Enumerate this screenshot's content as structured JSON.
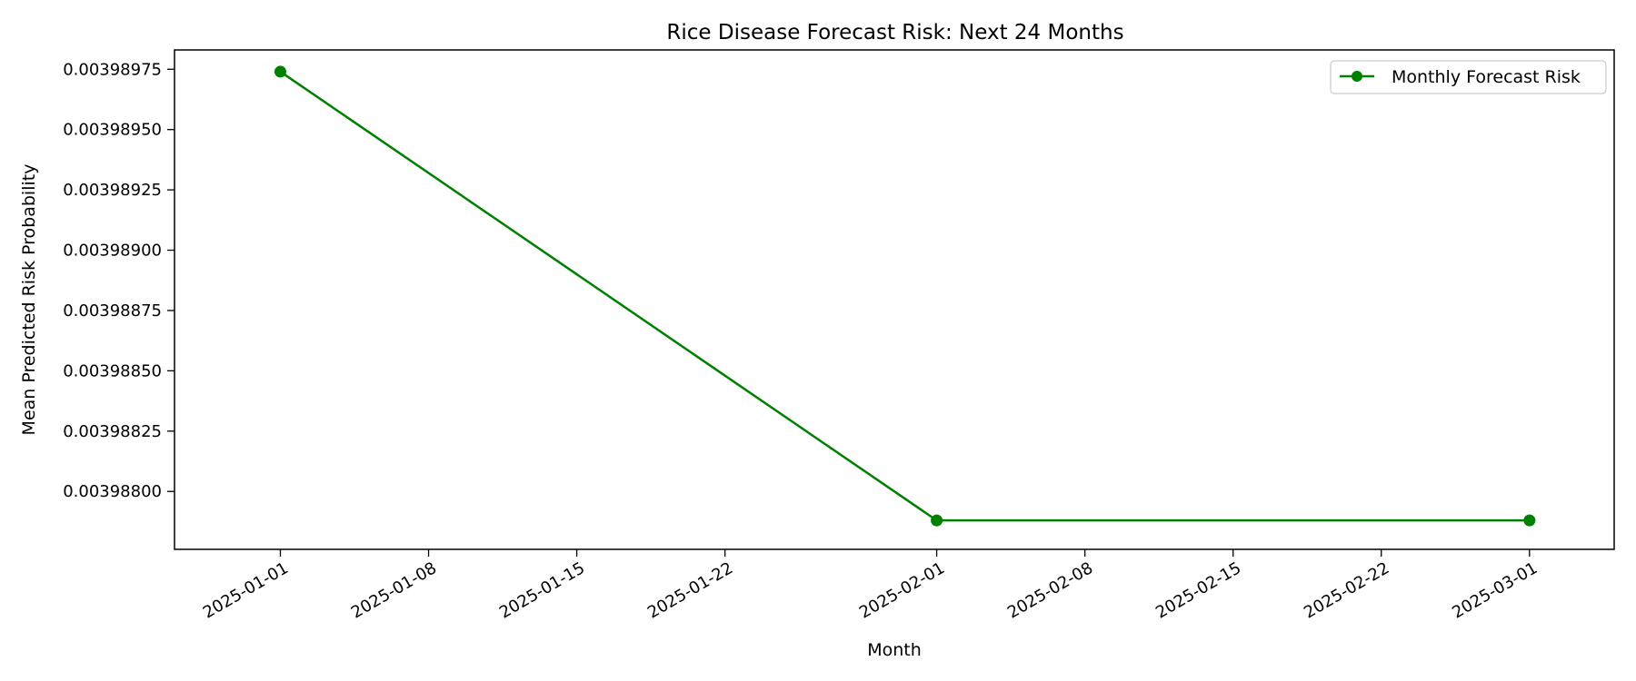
{
  "chart_data": {
    "type": "line",
    "title": "Rice Disease Forecast Risk: Next 24 Months",
    "xlabel": "Month",
    "ylabel": "Mean Predicted Risk Probability",
    "x_axis_type": "date",
    "xlim": [
      "2024-12-27",
      "2025-03-05"
    ],
    "ylim": [
      0.00398776,
      0.00398983
    ],
    "x_ticks": [
      "2025-01-01",
      "2025-01-08",
      "2025-01-15",
      "2025-01-22",
      "2025-02-01",
      "2025-02-08",
      "2025-02-15",
      "2025-02-22",
      "2025-03-01"
    ],
    "y_ticks": [
      0.003988,
      0.0039882500000000005,
      0.0039885,
      0.00398875,
      0.003989,
      0.00398925,
      0.0039895,
      0.00398975
    ],
    "y_tick_labels": [
      "0.00398800",
      "0.00398825",
      "0.00398850",
      "0.00398875",
      "0.00398900",
      "0.00398925",
      "0.00398950",
      "0.00398975"
    ],
    "grid": false,
    "legend_position": "top-right",
    "series": [
      {
        "name": "Monthly Forecast Risk",
        "color": "#008000",
        "marker": "circle",
        "x": [
          "2025-01-01",
          "2025-02-01",
          "2025-03-01"
        ],
        "y": [
          0.00398974,
          0.00398788,
          0.00398788
        ]
      }
    ]
  }
}
